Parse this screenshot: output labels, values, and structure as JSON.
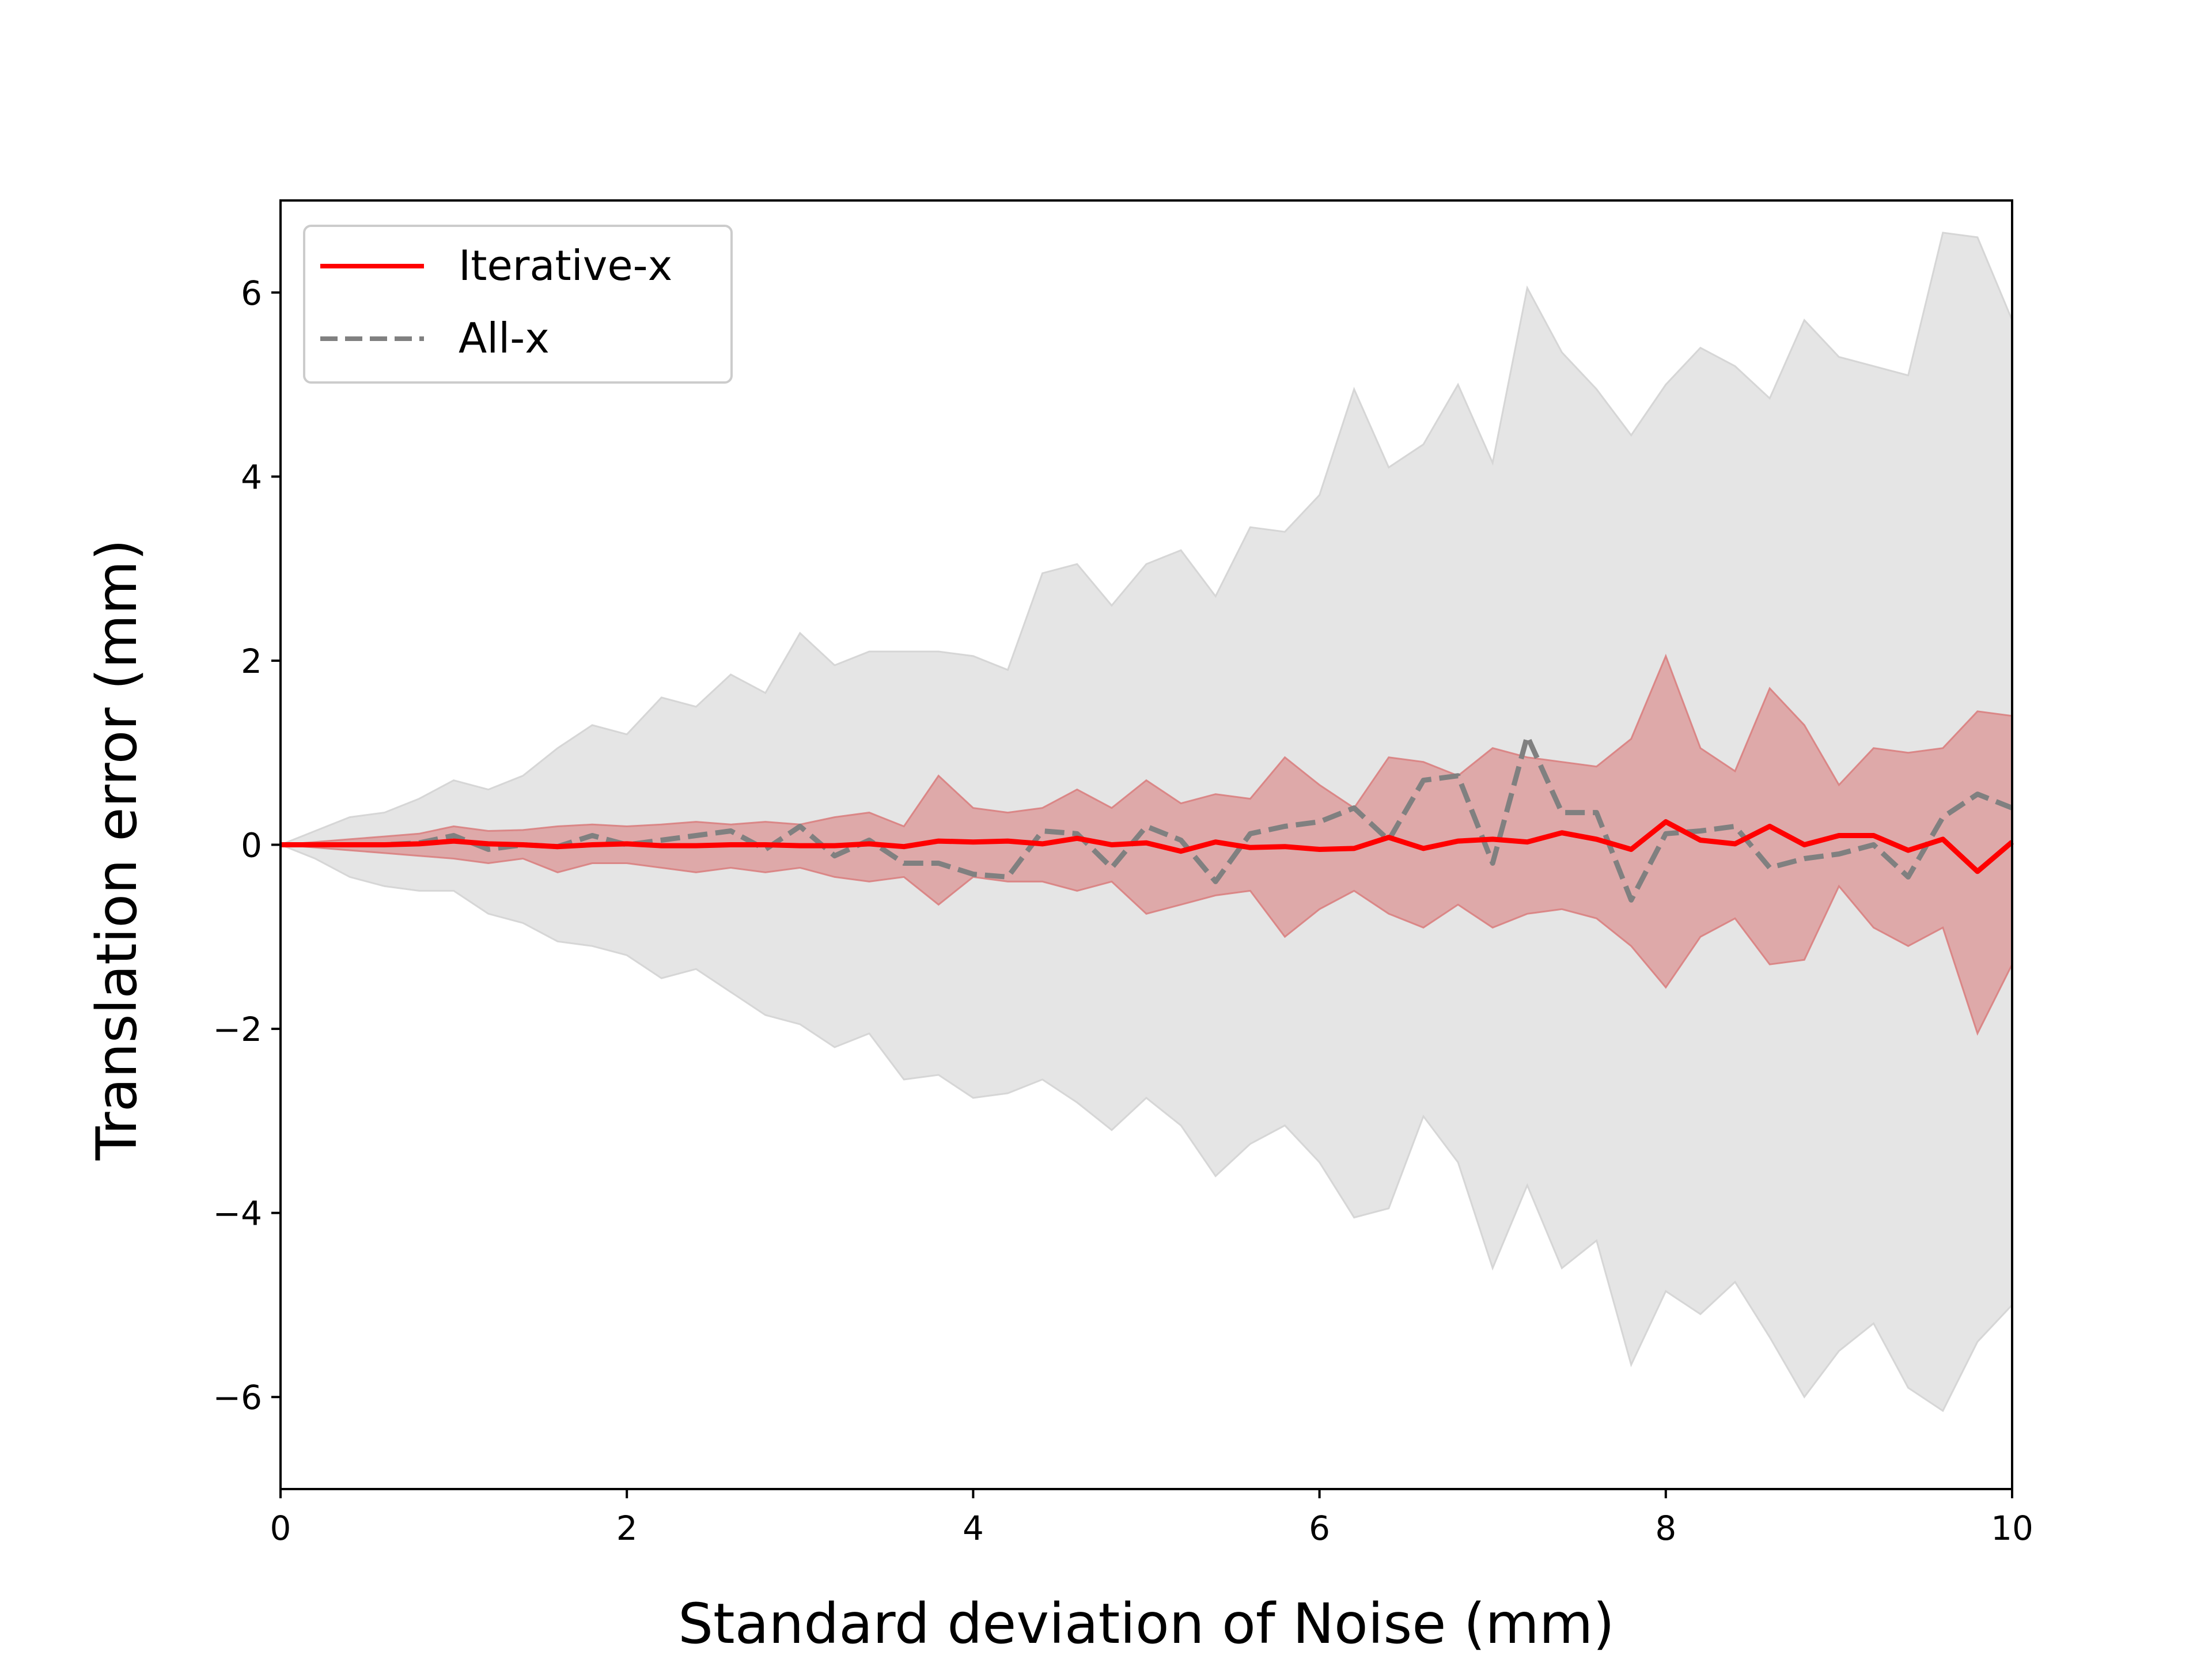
{
  "chart_data": {
    "type": "line",
    "title": "",
    "xlabel": "Standard deviation of Noise (mm)",
    "ylabel": "Translation error (mm)",
    "xlim": [
      0,
      10
    ],
    "ylim": [
      -7,
      7
    ],
    "xticks": [
      0,
      2,
      4,
      6,
      8,
      10
    ],
    "xtick_labels": [
      "0",
      "2",
      "4",
      "6",
      "8",
      "10"
    ],
    "yticks": [
      -6,
      -4,
      -2,
      0,
      2,
      4,
      6
    ],
    "ytick_labels": [
      "−6",
      "−4",
      "−2",
      "0",
      "2",
      "4",
      "6"
    ],
    "grid": false,
    "legend_position": "top-left",
    "x": [
      0,
      0.2,
      0.4,
      0.6,
      0.8,
      1.0,
      1.2,
      1.4,
      1.6,
      1.8,
      2.0,
      2.2,
      2.4,
      2.6,
      2.8,
      3.0,
      3.2,
      3.4,
      3.6,
      3.8,
      4.0,
      4.2,
      4.4,
      4.6,
      4.8,
      5.0,
      5.2,
      5.4,
      5.6,
      5.8,
      6.0,
      6.2,
      6.4,
      6.6,
      6.8,
      7.0,
      7.2,
      7.4,
      7.6,
      7.8,
      8.0,
      8.2,
      8.4,
      8.6,
      8.8,
      9.0,
      9.2,
      9.4,
      9.6,
      9.8,
      10.0
    ],
    "series": [
      {
        "name": "Iterative-x",
        "color": "#ff0000",
        "style": "solid",
        "values": [
          0,
          0,
          0,
          0,
          0.01,
          0.04,
          0.01,
          0.0,
          -0.02,
          0.0,
          0.01,
          -0.01,
          -0.01,
          0.0,
          0.0,
          -0.01,
          -0.01,
          0.01,
          -0.02,
          0.04,
          0.03,
          0.04,
          0.01,
          0.07,
          0.0,
          0.02,
          -0.07,
          0.03,
          -0.03,
          -0.02,
          -0.05,
          -0.04,
          0.08,
          -0.04,
          0.04,
          0.06,
          0.03,
          0.13,
          0.06,
          -0.05,
          0.25,
          0.05,
          0.01,
          0.2,
          0.0,
          0.1,
          0.1,
          -0.06,
          0.06,
          -0.29,
          0.03
        ]
      },
      {
        "name": "All-x",
        "color": "#808080",
        "style": "dashed",
        "values": [
          0,
          0.0,
          0.0,
          0.0,
          0.02,
          0.1,
          -0.05,
          0.0,
          -0.02,
          0.1,
          0.0,
          0.05,
          0.1,
          0.15,
          -0.05,
          0.2,
          -0.12,
          0.05,
          -0.2,
          -0.2,
          -0.32,
          -0.35,
          0.15,
          0.12,
          -0.25,
          0.2,
          0.05,
          -0.4,
          0.12,
          0.2,
          0.25,
          0.4,
          0.05,
          0.7,
          0.75,
          -0.2,
          1.18,
          0.35,
          0.35,
          -0.6,
          0.12,
          0.15,
          0.2,
          -0.25,
          -0.15,
          -0.1,
          0.0,
          -0.35,
          0.3,
          0.55,
          0.4
        ]
      }
    ],
    "bands": [
      {
        "series": "All-x",
        "color": "#d3d3d3",
        "upper": [
          0,
          0.15,
          0.3,
          0.35,
          0.5,
          0.7,
          0.6,
          0.75,
          1.05,
          1.3,
          1.2,
          1.6,
          1.5,
          1.85,
          1.65,
          2.3,
          1.95,
          2.1,
          2.1,
          2.1,
          2.05,
          1.9,
          2.95,
          3.05,
          2.6,
          3.05,
          3.2,
          2.7,
          3.45,
          3.4,
          3.8,
          4.95,
          4.1,
          4.35,
          5.0,
          4.15,
          6.05,
          5.35,
          4.95,
          4.45,
          5.0,
          5.4,
          5.2,
          4.85,
          5.7,
          5.3,
          5.2,
          5.1,
          6.65,
          6.6,
          5.7
        ],
        "lower": [
          0,
          -0.15,
          -0.35,
          -0.45,
          -0.5,
          -0.5,
          -0.75,
          -0.85,
          -1.05,
          -1.1,
          -1.2,
          -1.45,
          -1.35,
          -1.6,
          -1.85,
          -1.95,
          -2.2,
          -2.05,
          -2.55,
          -2.5,
          -2.75,
          -2.7,
          -2.55,
          -2.8,
          -3.1,
          -2.75,
          -3.05,
          -3.6,
          -3.25,
          -3.05,
          -3.45,
          -4.05,
          -3.95,
          -2.95,
          -3.45,
          -4.6,
          -3.7,
          -4.6,
          -4.3,
          -5.65,
          -4.85,
          -5.1,
          -4.75,
          -5.35,
          -6.0,
          -5.5,
          -5.2,
          -5.9,
          -6.15,
          -5.4,
          -5.0
        ]
      },
      {
        "series": "Iterative-x",
        "color": "#d98080",
        "upper": [
          0,
          0.03,
          0.06,
          0.09,
          0.12,
          0.2,
          0.15,
          0.16,
          0.2,
          0.22,
          0.2,
          0.22,
          0.25,
          0.22,
          0.25,
          0.22,
          0.3,
          0.35,
          0.2,
          0.75,
          0.4,
          0.35,
          0.4,
          0.6,
          0.4,
          0.7,
          0.45,
          0.55,
          0.5,
          0.95,
          0.65,
          0.4,
          0.95,
          0.9,
          0.75,
          1.05,
          0.95,
          0.9,
          0.85,
          1.15,
          2.05,
          1.05,
          0.8,
          1.7,
          1.3,
          0.65,
          1.05,
          1.0,
          1.05,
          1.45,
          1.4
        ],
        "lower": [
          0,
          -0.03,
          -0.06,
          -0.09,
          -0.12,
          -0.15,
          -0.2,
          -0.15,
          -0.3,
          -0.2,
          -0.2,
          -0.25,
          -0.3,
          -0.25,
          -0.3,
          -0.25,
          -0.35,
          -0.4,
          -0.35,
          -0.65,
          -0.35,
          -0.4,
          -0.4,
          -0.5,
          -0.4,
          -0.75,
          -0.65,
          -0.55,
          -0.5,
          -1.0,
          -0.7,
          -0.5,
          -0.75,
          -0.9,
          -0.65,
          -0.9,
          -0.75,
          -0.7,
          -0.8,
          -1.1,
          -1.55,
          -1.0,
          -0.8,
          -1.3,
          -1.25,
          -0.45,
          -0.9,
          -1.1,
          -0.9,
          -2.05,
          -1.3
        ]
      }
    ]
  }
}
